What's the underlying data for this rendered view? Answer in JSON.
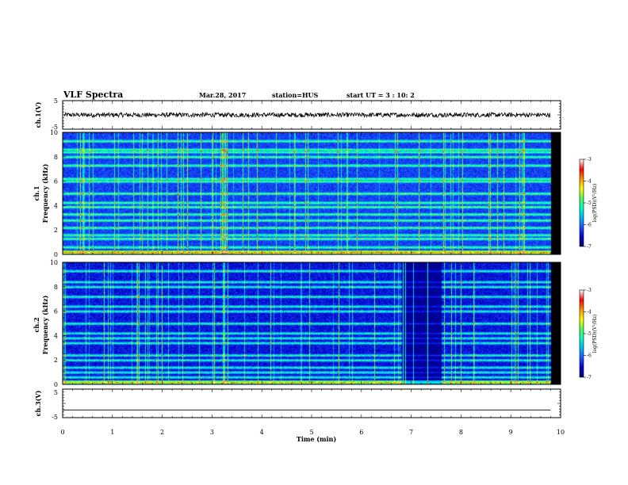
{
  "header": {
    "title": "VLF Spectra",
    "date": "Mar.28, 2017",
    "station": "station=HUS",
    "start": "start  UT =   3 : 10: 2"
  },
  "colors": {
    "spec_scale": [
      "#00006e",
      "#0000c8",
      "#1e50ff",
      "#00b4ff",
      "#00ffc8",
      "#50ff50",
      "#ffff00",
      "#ff9600",
      "#ff0000",
      "#ffffff"
    ],
    "background": "#ffffff",
    "trace": "#000000"
  },
  "chart_data": [
    {
      "type": "line",
      "name": "ch.1 voltage",
      "ylabel": "ch.1(V)",
      "ylim": [
        -5,
        5
      ],
      "yticks": [
        "5",
        "-5"
      ],
      "description_level": 0,
      "noise_amplitude": 0.8
    },
    {
      "type": "heatmap",
      "ylabel": "Frequency (kHz)",
      "channel": "ch.1",
      "ylim": [
        0,
        10
      ],
      "yticks": [
        "0",
        "2",
        "4",
        "6",
        "8",
        "10"
      ],
      "colorbar": {
        "label": "log(PSD)(V²/Hz)",
        "range": [
          -7,
          -3
        ],
        "ticks": [
          "-3",
          "-4",
          "-5",
          "-6",
          "-7"
        ]
      },
      "emission_bands_khz": [
        0.2,
        0.6,
        1.3,
        1.6,
        2.2,
        2.8,
        3.3,
        3.9,
        4.25,
        5.0,
        6.0,
        6.2,
        7.3,
        8.0,
        8.4,
        8.6,
        9.3
      ],
      "data_end_min": 9.8
    },
    {
      "type": "heatmap",
      "ylabel": "Frequency (kHz)",
      "channel": "ch.2",
      "ylim": [
        0,
        10
      ],
      "yticks": [
        "0",
        "2",
        "4",
        "6",
        "8",
        "10"
      ],
      "colorbar": {
        "label": "log(PSD)(V²/Hz)",
        "range": [
          -7,
          -3
        ],
        "ticks": [
          "-3",
          "-4",
          "-5",
          "-6",
          "-7"
        ]
      },
      "emission_bands_khz": [
        0.2,
        0.6,
        1.0,
        1.4,
        2.0,
        2.4,
        3.4,
        3.8,
        4.2,
        5.0,
        6.0,
        6.4,
        7.2,
        8.0,
        8.4,
        9.3
      ],
      "quiet_interval_min": [
        6.8,
        7.6
      ],
      "data_end_min": 9.8
    },
    {
      "type": "line",
      "name": "ch.3 voltage",
      "ylabel": "ch.3(V)",
      "ylim": [
        -5,
        5
      ],
      "yticks": [
        "5",
        "-5"
      ],
      "level": -2.3
    }
  ],
  "xaxis": {
    "label": "Time  (min)",
    "range": [
      0,
      10
    ],
    "ticks": [
      "0",
      "1",
      "2",
      "3",
      "4",
      "5",
      "6",
      "7",
      "8",
      "9",
      "10"
    ]
  }
}
